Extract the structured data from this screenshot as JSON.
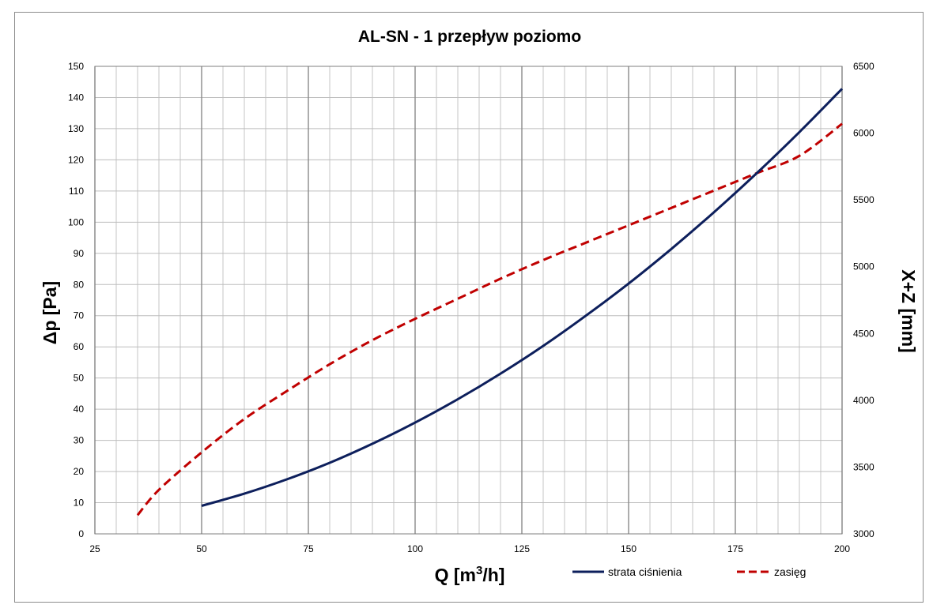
{
  "chart_data": {
    "type": "line",
    "title": "AL-SN - 1  przepływ poziomo",
    "xlabel": {
      "base": "Q [m",
      "sup": "3",
      "rest": "/h]"
    },
    "ylabel": "Δp [Pa]",
    "y2label": "X+Z [mm]",
    "xlim": [
      25,
      200
    ],
    "ylim": [
      0,
      150
    ],
    "y2lim": [
      3000,
      6500
    ],
    "x_ticks": [
      25,
      50,
      75,
      100,
      125,
      150,
      175,
      200
    ],
    "y_ticks": [
      0,
      10,
      20,
      30,
      40,
      50,
      60,
      70,
      80,
      90,
      100,
      110,
      120,
      130,
      140,
      150
    ],
    "y2_ticks": [
      3000,
      3500,
      4000,
      4500,
      5000,
      5500,
      6000,
      6500
    ],
    "grid": true,
    "legend_position": "bottom-right",
    "series": [
      {
        "name": "strata ciśnienia",
        "axis": "left",
        "color": "#0d1f5c",
        "style": "solid",
        "x": [
          50,
          60,
          70,
          80,
          90,
          100,
          110,
          120,
          130,
          140,
          150,
          160,
          170,
          180,
          190,
          200
        ],
        "y": [
          9,
          12.9,
          17.5,
          22.8,
          28.9,
          35.7,
          43.2,
          51.4,
          60.3,
          70,
          80.3,
          91.4,
          103.2,
          115.7,
          128.9,
          142.8
        ]
      },
      {
        "name": "zasięg",
        "axis": "right",
        "color": "#c00000",
        "style": "dashed",
        "x": [
          35,
          40,
          50,
          60,
          70,
          80,
          90,
          100,
          110,
          120,
          130,
          140,
          150,
          160,
          170,
          180,
          190,
          200
        ],
        "y": [
          3140,
          3330,
          3610,
          3860,
          4070,
          4270,
          4450,
          4610,
          4760,
          4910,
          5050,
          5180,
          5310,
          5440,
          5570,
          5700,
          5830,
          6070
        ]
      }
    ]
  }
}
